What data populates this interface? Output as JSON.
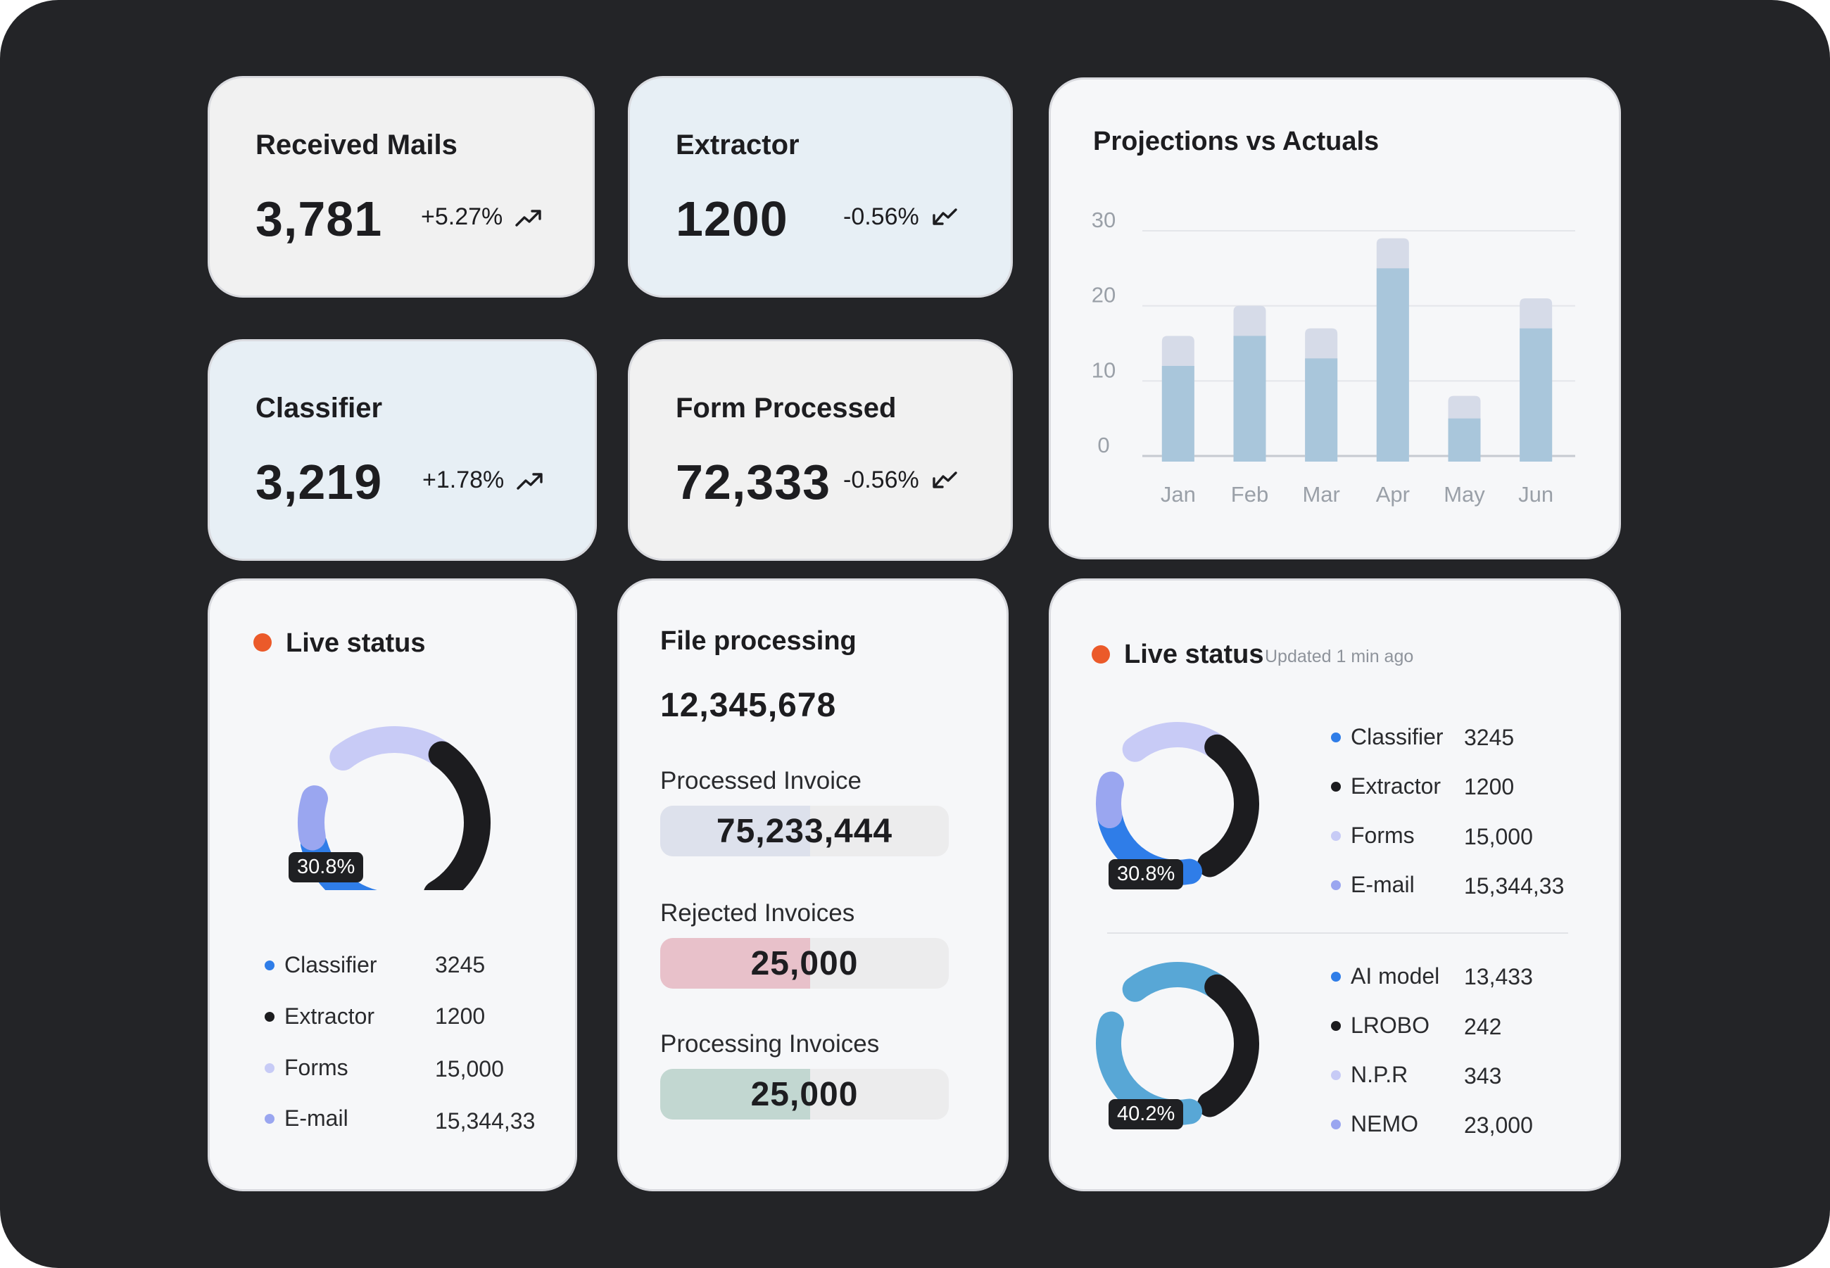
{
  "stats": {
    "received_mails": {
      "title": "Received Mails",
      "value": "3,781",
      "change": "+5.27%",
      "trend": "up"
    },
    "extractor": {
      "title": "Extractor",
      "value": "1200",
      "change": "-0.56%",
      "trend": "down"
    },
    "classifier": {
      "title": "Classifier",
      "value": "3,219",
      "change": "+1.78%",
      "trend": "up"
    },
    "form_processed": {
      "title": "Form Processed",
      "value": "72,333",
      "change": "-0.56%",
      "trend": "down"
    }
  },
  "chart_data": {
    "type": "bar",
    "title": "Projections vs Actuals",
    "categories": [
      "Jan",
      "Feb",
      "Mar",
      "Apr",
      "May",
      "Jun"
    ],
    "series": [
      {
        "name": "Actuals",
        "values": [
          12,
          16,
          13,
          25,
          5,
          17
        ],
        "color": "#a9c6db"
      },
      {
        "name": "Projections",
        "values": [
          16,
          20,
          17,
          29,
          8,
          21
        ],
        "color": "#d6dbe8"
      }
    ],
    "yticks": [
      "30",
      "20",
      "10",
      "0"
    ],
    "ylim": [
      0,
      30
    ],
    "xlabel": "",
    "ylabel": "",
    "grid": true
  },
  "live_status_left": {
    "title": "Live status",
    "badge": "30.8%",
    "legend": [
      {
        "label": "Classifier",
        "value": "3245",
        "color": "#2f7de8"
      },
      {
        "label": "Extractor",
        "value": "1200",
        "color": "#1c1c1f"
      },
      {
        "label": "Forms",
        "value": "15,000",
        "color": "#c7cbf6"
      },
      {
        "label": "E-mail",
        "value": "15,344,33",
        "color": "#9aa6f0"
      }
    ]
  },
  "file_processing": {
    "title": "File processing",
    "total": "12,345,678",
    "rows": [
      {
        "label": "Processed Invoice",
        "value": "75,233,444",
        "fill_fraction": 0.52,
        "color": "#dde1ec"
      },
      {
        "label": "Rejected Invoices",
        "value": "25,000",
        "fill_fraction": 0.52,
        "color": "#e8c1ca"
      },
      {
        "label": "Processing Invoices",
        "value": "25,000",
        "fill_fraction": 0.52,
        "color": "#c2d7d1"
      }
    ]
  },
  "live_status_right": {
    "title": "Live status",
    "updated": "Updated 1 min ago",
    "donut1": {
      "badge": "30.8%",
      "legend": [
        {
          "label": "Classifier",
          "value": "3245",
          "color": "#2f7de8"
        },
        {
          "label": "Extractor",
          "value": "1200",
          "color": "#1c1c1f"
        },
        {
          "label": "Forms",
          "value": "15,000",
          "color": "#c7cbf6"
        },
        {
          "label": "E-mail",
          "value": "15,344,33",
          "color": "#9aa6f0"
        }
      ]
    },
    "donut2": {
      "badge": "40.2%",
      "legend": [
        {
          "label": "AI model",
          "value": "13,433",
          "color": "#2f7de8"
        },
        {
          "label": "LROBO",
          "value": "242",
          "color": "#1c1c1f"
        },
        {
          "label": "N.P.R",
          "value": "343",
          "color": "#c7cbf6"
        },
        {
          "label": "NEMO",
          "value": "23,000",
          "color": "#9aa6f0"
        }
      ]
    }
  }
}
